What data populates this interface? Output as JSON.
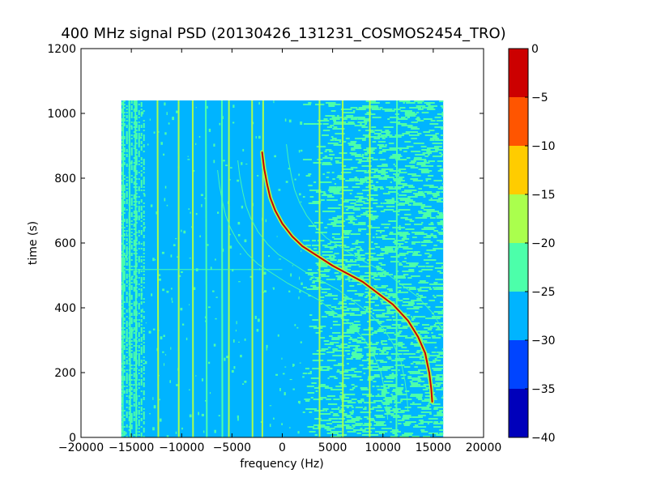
{
  "chart_data": {
    "type": "heatmap",
    "title": "400 MHz signal PSD (20130426_131231_COSMOS2454_TRO)",
    "xlabel": "frequency (Hz)",
    "ylabel": "time (s)",
    "xlim": [
      -20000,
      20000
    ],
    "ylim": [
      0,
      1200
    ],
    "x_ticks": [
      -20000,
      -15000,
      -10000,
      -5000,
      0,
      5000,
      10000,
      15000,
      20000
    ],
    "y_ticks": [
      0,
      200,
      400,
      600,
      800,
      1000,
      1200
    ],
    "data_extent": {
      "x": [
        -16000,
        16000
      ],
      "y": [
        0,
        1040
      ]
    },
    "background_level": "-30 to -25",
    "colorbar": {
      "ticks": [
        0,
        -5,
        -10,
        -15,
        -20,
        -25,
        -30,
        -35,
        -40
      ],
      "levels": [
        {
          "range": [
            -40,
            -35
          ],
          "color": "#0000bb"
        },
        {
          "range": [
            -35,
            -30
          ],
          "color": "#0044ff"
        },
        {
          "range": [
            -30,
            -25
          ],
          "color": "#00b4ff"
        },
        {
          "range": [
            -25,
            -20
          ],
          "color": "#4cffaa"
        },
        {
          "range": [
            -20,
            -15
          ],
          "color": "#aaff4d"
        },
        {
          "range": [
            -15,
            -10
          ],
          "color": "#ffcc00"
        },
        {
          "range": [
            -10,
            -5
          ],
          "color": "#ff5500"
        },
        {
          "range": [
            -5,
            0
          ],
          "color": "#cc0000"
        }
      ]
    },
    "vertical_lines": [
      {
        "x": -15800,
        "level": "-25 to -20"
      },
      {
        "x": -15200,
        "level": "-25 to -20"
      },
      {
        "x": -14600,
        "level": "-25 to -20"
      },
      {
        "x": -12400,
        "level": "-20 to -15"
      },
      {
        "x": -10300,
        "level": "-20 to -15"
      },
      {
        "x": -8900,
        "level": "-20 to -15"
      },
      {
        "x": -7600,
        "level": "-25 to -20"
      },
      {
        "x": -6000,
        "level": "-25 to -20"
      },
      {
        "x": -5300,
        "level": "-20 to -15"
      },
      {
        "x": -3000,
        "level": "-20 to -15"
      },
      {
        "x": -1900,
        "level": "-20 to -15"
      },
      {
        "x": 3700,
        "level": "-20 to -15"
      },
      {
        "x": 6000,
        "level": "-20 to -15"
      },
      {
        "x": 8700,
        "level": "-20 to -15"
      },
      {
        "x": 11400,
        "level": "-25 to -20"
      }
    ],
    "doppler_curve": {
      "level": "-5 to 0",
      "points": [
        {
          "x": -2000,
          "y": 880
        },
        {
          "x": -1800,
          "y": 830
        },
        {
          "x": -1500,
          "y": 780
        },
        {
          "x": -1200,
          "y": 740
        },
        {
          "x": -700,
          "y": 700
        },
        {
          "x": 0,
          "y": 660
        },
        {
          "x": 1000,
          "y": 620
        },
        {
          "x": 2000,
          "y": 590
        },
        {
          "x": 3500,
          "y": 560
        },
        {
          "x": 5000,
          "y": 530
        },
        {
          "x": 6500,
          "y": 505
        },
        {
          "x": 8000,
          "y": 480
        },
        {
          "x": 9500,
          "y": 445
        },
        {
          "x": 11000,
          "y": 410
        },
        {
          "x": 12500,
          "y": 360
        },
        {
          "x": 13500,
          "y": 310
        },
        {
          "x": 14200,
          "y": 260
        },
        {
          "x": 14600,
          "y": 200
        },
        {
          "x": 14800,
          "y": 150
        },
        {
          "x": 14900,
          "y": 110
        }
      ]
    },
    "noise_band": {
      "x": [
        2000,
        16000
      ],
      "y": [
        0,
        1040
      ],
      "level": "-25 to -20"
    },
    "horizontal_artifact": {
      "y": 518,
      "x": [
        -16000,
        0
      ],
      "level": "-25 to -20"
    }
  }
}
